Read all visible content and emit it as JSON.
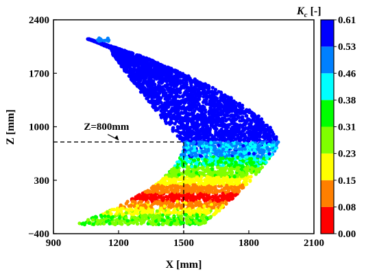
{
  "chart_data": {
    "type": "scatter",
    "title": "",
    "xlabel": "X [mm]",
    "ylabel": "Z [mm]",
    "xlim": [
      900,
      2100
    ],
    "ylim": [
      -400,
      2400
    ],
    "x_ticks": [
      900,
      1200,
      1500,
      1800,
      2100
    ],
    "y_ticks": [
      -400,
      300,
      1000,
      1700,
      2400
    ],
    "x_tick_labels": [
      "900",
      "1200",
      "1500",
      "1800",
      "2100"
    ],
    "y_tick_labels": [
      "−400",
      "300",
      "1000",
      "1700",
      "2400"
    ],
    "grid": false,
    "colorbar": {
      "title_main": "K",
      "title_sub": "c",
      "title_unit": "[-]",
      "range": [
        0,
        0.61
      ],
      "levels": [
        {
          "value": 0.0,
          "label": "0.00",
          "color": "#ff0000"
        },
        {
          "value": 0.08,
          "label": "0.08",
          "color": "#ff7f00"
        },
        {
          "value": 0.15,
          "label": "0.15",
          "color": "#ffff00"
        },
        {
          "value": 0.23,
          "label": "0.23",
          "color": "#80ff00"
        },
        {
          "value": 0.31,
          "label": "0.31",
          "color": "#00ff00"
        },
        {
          "value": 0.38,
          "label": "0.38",
          "color": "#00ffff"
        },
        {
          "value": 0.46,
          "label": "0.46",
          "color": "#0080ff"
        },
        {
          "value": 0.53,
          "label": "0.53",
          "color": "#0000ff"
        },
        {
          "value": 0.61,
          "label": "0.61",
          "color": null
        }
      ]
    },
    "annotation": {
      "text": "Z=800mm",
      "line_z": 800,
      "line_x_end": 1500,
      "arrow_x": 1040,
      "arrow_z": 960
    },
    "region": {
      "upper_arm": {
        "tip": [
          1130,
          2150
        ],
        "peak_x": 1940,
        "peak_z": 800
      },
      "lower_arm": {
        "tip": [
          1010,
          -160
        ],
        "end_x": 1500
      }
    }
  }
}
